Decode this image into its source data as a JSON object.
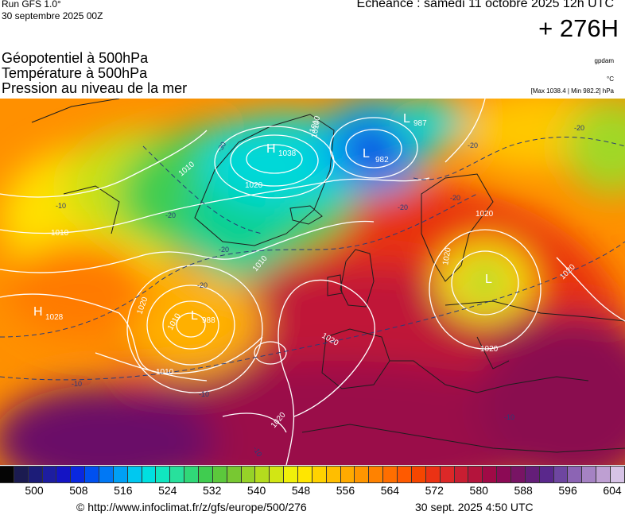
{
  "header": {
    "run": "Run GFS 1.0°",
    "run_date": "30 septembre 2025 00Z",
    "valid": "Echéance : samedi 11 octobre 2025 12h UTC",
    "hour": "+ 276H",
    "fields": [
      "Géopotentiel à 500hPa",
      "Température à 500hPa",
      "Pression au niveau de la mer"
    ],
    "site": "gpdam",
    "unit": "°C",
    "minmax": "[Max 1038.4 | Min 982.2] hPa"
  },
  "map": {
    "pressure_centers": [
      {
        "type": "H",
        "value": "1038",
        "place": "Greenland"
      },
      {
        "type": "L",
        "value": "982",
        "place": "Norwegian Sea"
      },
      {
        "type": "L",
        "value": "987",
        "place": "Barents Sea"
      },
      {
        "type": "L",
        "value": "988",
        "place": "Mid-Atlantic"
      },
      {
        "type": "H",
        "value": "1028",
        "place": "Western Atlantic"
      },
      {
        "type": "L",
        "value": "",
        "place": "Eastern Europe"
      }
    ],
    "isobar_labels": [
      "1010",
      "1010",
      "1010",
      "1020",
      "1010",
      "1010",
      "1010",
      "1020",
      "1020",
      "1020",
      "1020",
      "1010",
      "1020",
      "1020",
      "1020"
    ],
    "isotherm_labels": [
      "-30",
      "-20",
      "-20",
      "-20",
      "-20",
      "-20",
      "-10",
      "-10",
      "-10",
      "-10",
      "-20",
      "-10",
      "-20"
    ]
  },
  "scale": {
    "colors": [
      "#050505",
      "#1b1b50",
      "#1c1c78",
      "#1d1da0",
      "#1414c4",
      "#0a28e0",
      "#0050f0",
      "#0078f5",
      "#00a0f5",
      "#00c8f0",
      "#00e0e0",
      "#10e6c0",
      "#28e09c",
      "#30d878",
      "#40cc50",
      "#5cc83c",
      "#78c832",
      "#96d228",
      "#b4dc1e",
      "#d2e614",
      "#f0f00a",
      "#ffe600",
      "#ffd200",
      "#ffbe00",
      "#ffaa00",
      "#ff9600",
      "#ff8200",
      "#ff6e00",
      "#ff5a00",
      "#f54600",
      "#eb3214",
      "#dc2828",
      "#c81e32",
      "#b4143c",
      "#a00a46",
      "#8c0a55",
      "#781464",
      "#641e78",
      "#5a288c",
      "#6e46a0",
      "#8c64b4",
      "#a582c3",
      "#be9fd2",
      "#d7c3e6"
    ],
    "ticks": [
      "500",
      "508",
      "516",
      "524",
      "532",
      "540",
      "548",
      "556",
      "564",
      "572",
      "580",
      "588",
      "596",
      "604"
    ]
  },
  "footer": {
    "copyright": "© http://www.infoclimat.fr/z/gfs/europe/500/276",
    "issued": "30 sept. 2025  4:50 UTC"
  }
}
